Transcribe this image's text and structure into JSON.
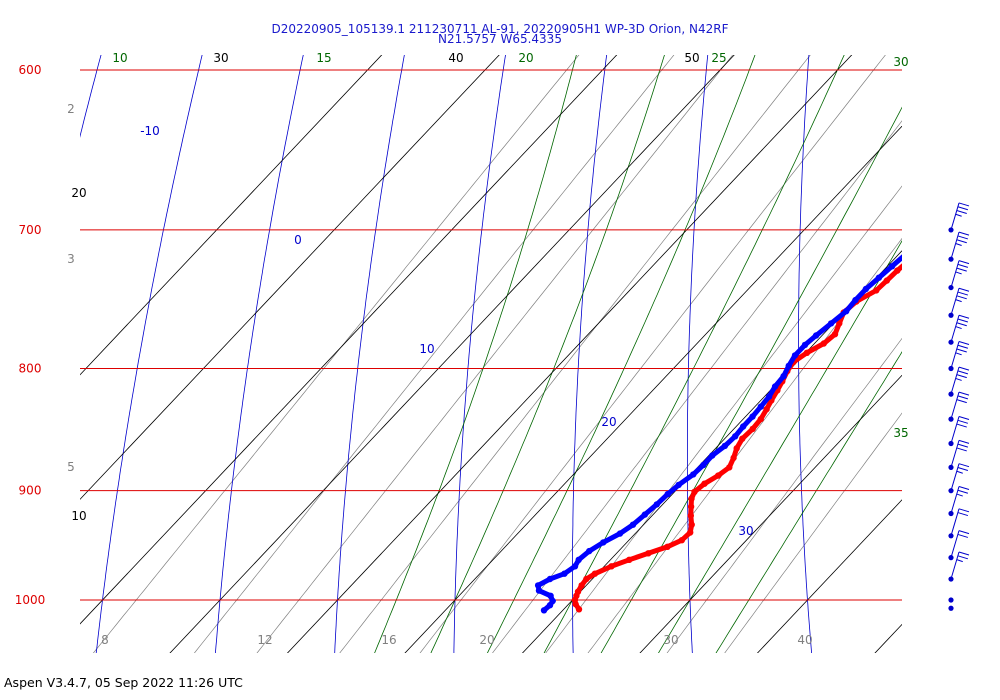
{
  "header": {
    "title_line1": "D20220905_105139.1 211230711 AL-91, 20220905H1 WP-3D Orion, N42RF",
    "title_line2": "N21.5757 W65.4335"
  },
  "footer": {
    "text": "Aspen V3.4.7, 05 Sep 2022  11:26 UTC"
  },
  "chart_data": {
    "type": "line",
    "diagram": "skew-T log-p",
    "colors": {
      "isobar": "#dd0000",
      "isotherm": "#000000",
      "mixing_ratio": "#808080",
      "dry_adiabat": "#0000cc",
      "moist_adiabat": "#006600",
      "temperature": "#ff0000",
      "dewpoint": "#0000ff"
    },
    "pressure_labels": [
      "600",
      "700",
      "800",
      "900",
      "1000"
    ],
    "isotherm_labels": [
      "30",
      "40",
      "50",
      "20",
      "10"
    ],
    "mixing_ratio_labels": [
      "2",
      "3",
      "5",
      "8",
      "12",
      "16",
      "20",
      "30",
      "40"
    ],
    "dry_adiabat_labels": [
      "-10",
      "0",
      "10",
      "20",
      "30"
    ],
    "moist_adiabat_labels": [
      "10",
      "15",
      "20",
      "25",
      "30",
      "35"
    ],
    "series": [
      {
        "key": "temperature",
        "points": [
          [
            1009,
            21.3
          ],
          [
            1004,
            20.6
          ],
          [
            1000,
            20.2
          ],
          [
            996,
            20.0
          ],
          [
            992,
            19.8
          ],
          [
            986,
            19.6
          ],
          [
            980,
            19.5
          ],
          [
            975,
            19.8
          ],
          [
            968,
            20.6
          ],
          [
            962,
            21.6
          ],
          [
            956,
            22.7
          ],
          [
            950,
            23.8
          ],
          [
            944,
            24.5
          ],
          [
            937,
            24.6
          ],
          [
            930,
            24.1
          ],
          [
            922,
            23.3
          ],
          [
            914,
            22.6
          ],
          [
            907,
            22.0
          ],
          [
            901,
            21.7
          ],
          [
            894,
            21.9
          ],
          [
            887,
            22.4
          ],
          [
            880,
            22.7
          ],
          [
            872,
            22.3
          ],
          [
            864,
            21.8
          ],
          [
            856,
            21.5
          ],
          [
            848,
            21.6
          ],
          [
            840,
            21.5
          ],
          [
            832,
            21.2
          ],
          [
            825,
            20.9
          ],
          [
            817,
            20.6
          ],
          [
            810,
            20.3
          ],
          [
            802,
            19.9
          ],
          [
            795,
            19.7
          ],
          [
            788,
            20.1
          ],
          [
            781,
            20.8
          ],
          [
            774,
            21.0
          ],
          [
            766,
            20.5
          ],
          [
            758,
            20.0
          ],
          [
            750,
            20.2
          ],
          [
            742,
            21.0
          ],
          [
            735,
            21.1
          ],
          [
            728,
            21.2
          ],
          [
            720,
            21.4
          ],
          [
            713,
            21.8
          ],
          [
            706,
            22.3
          ],
          [
            700,
            22.5
          ],
          [
            695,
            22.9
          ]
        ]
      },
      {
        "key": "dewpoint",
        "points": [
          [
            1010,
            18.4
          ],
          [
            1005,
            18.5
          ],
          [
            1001,
            18.4
          ],
          [
            996,
            17.8
          ],
          [
            991,
            16.4
          ],
          [
            986,
            15.9
          ],
          [
            980,
            16.4
          ],
          [
            975,
            17.2
          ],
          [
            968,
            17.5
          ],
          [
            962,
            17.3
          ],
          [
            954,
            17.5
          ],
          [
            946,
            18.0
          ],
          [
            938,
            18.7
          ],
          [
            930,
            19.1
          ],
          [
            921,
            19.3
          ],
          [
            912,
            19.5
          ],
          [
            903,
            19.6
          ],
          [
            895,
            19.8
          ],
          [
            886,
            20.2
          ],
          [
            878,
            20.3
          ],
          [
            870,
            20.3
          ],
          [
            862,
            20.6
          ],
          [
            854,
            20.7
          ],
          [
            846,
            20.6
          ],
          [
            838,
            20.6
          ],
          [
            830,
            20.5
          ],
          [
            822,
            20.4
          ],
          [
            814,
            20.1
          ],
          [
            806,
            20.0
          ],
          [
            798,
            19.6
          ],
          [
            790,
            19.3
          ],
          [
            782,
            19.3
          ],
          [
            775,
            19.5
          ],
          [
            766,
            19.8
          ],
          [
            757,
            20.1
          ],
          [
            749,
            20.0
          ],
          [
            741,
            20.0
          ],
          [
            733,
            20.2
          ],
          [
            725,
            20.4
          ],
          [
            717,
            20.6
          ],
          [
            709,
            20.7
          ],
          [
            702,
            20.6
          ],
          [
            697,
            20.4
          ]
        ]
      }
    ],
    "wind_barbs": [
      {
        "pressure": 700,
        "speed_kt": 35
      },
      {
        "pressure": 720,
        "speed_kt": 35
      },
      {
        "pressure": 740,
        "speed_kt": 35
      },
      {
        "pressure": 760,
        "speed_kt": 35
      },
      {
        "pressure": 780,
        "speed_kt": 35
      },
      {
        "pressure": 800,
        "speed_kt": 35
      },
      {
        "pressure": 820,
        "speed_kt": 35
      },
      {
        "pressure": 840,
        "speed_kt": 30
      },
      {
        "pressure": 860,
        "speed_kt": 30
      },
      {
        "pressure": 880,
        "speed_kt": 30
      },
      {
        "pressure": 900,
        "speed_kt": 25
      },
      {
        "pressure": 920,
        "speed_kt": 25
      },
      {
        "pressure": 940,
        "speed_kt": 20
      },
      {
        "pressure": 960,
        "speed_kt": 20
      },
      {
        "pressure": 980,
        "speed_kt": 25
      },
      {
        "pressure": 1000,
        "speed_kt": 0
      },
      {
        "pressure": 1008,
        "speed_kt": 0
      }
    ]
  }
}
